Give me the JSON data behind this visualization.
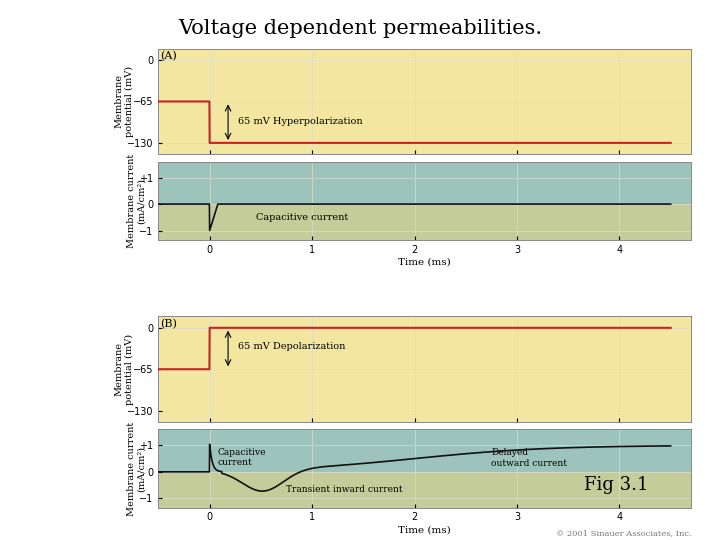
{
  "title": "Voltage dependent permeabilities.",
  "title_fontsize": 15,
  "fig_bg": "#ffffff",
  "panel_A_label": "(A)",
  "panel_B_label": "(B)",
  "voltage_color": "#cc2222",
  "current_color": "#111111",
  "xlabel": "Time (ms)",
  "ylabel_potential": "Membrane\npotential (mV)",
  "ylabel_current": "Membrane current\n(mA/cm²)",
  "fig_note": "Fig 3.1",
  "copyright": "© 2001 Sinauer Associates, Inc.",
  "hyper_annotation": "65 mV Hyperpolarization",
  "depo_annotation": "65 mV Depolarization",
  "cap_annotation_A": "Capacitive current",
  "cap_annotation_B": "Capacitive\ncurrent",
  "delayed_annotation": "Delayed\noutward current",
  "transient_annotation": "Transient inward current",
  "panel_bg_yellow": "#f2e6a0",
  "panel_bg_teal": "#9dc4bc",
  "panel_bg_green": "#c4cc9a"
}
